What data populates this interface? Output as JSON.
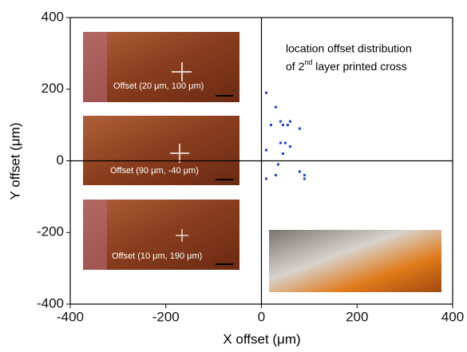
{
  "chart_data": {
    "type": "scatter",
    "xlabel": "X offset (μm)",
    "ylabel": "Y offset (μm)",
    "annotation": {
      "line1": "location offset distribution",
      "line2_start": "of 2",
      "line2_sup": "nd",
      "line2_end": " layer printed cross"
    },
    "inset_labels": [
      "Offset (20 μm, 100 μm)",
      "Offset (90 μm, -40 μm)",
      "Offset (10 μm, 190 μm)"
    ],
    "xlim": [
      -400,
      400
    ],
    "ylim": [
      -400,
      400
    ],
    "xticks": [
      -400,
      -200,
      0,
      200,
      400
    ],
    "yticks": [
      -400,
      -200,
      0,
      200,
      400
    ],
    "color": "#1a3fe0",
    "series": [
      {
        "name": null,
        "color": "#1a3fe0",
        "x": [
          10,
          30,
          20,
          40,
          45,
          55,
          60,
          80,
          40,
          50,
          60,
          45,
          10,
          80,
          90,
          90,
          30,
          10,
          35
        ],
        "values": [
          190,
          150,
          100,
          110,
          100,
          100,
          110,
          90,
          50,
          50,
          40,
          20,
          30,
          -30,
          -40,
          -50,
          -40,
          -50,
          -10
        ]
      }
    ]
  }
}
